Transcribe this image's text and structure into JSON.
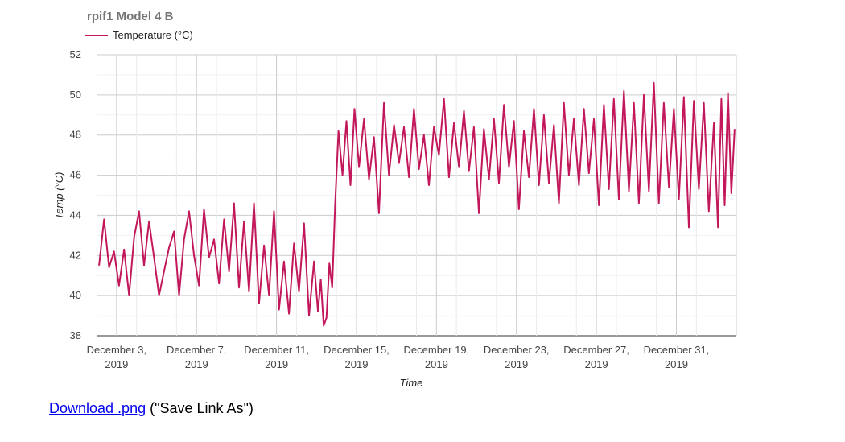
{
  "chart_data": {
    "type": "line",
    "title": "rpif1 Model 4 B",
    "xlabel": "Time",
    "ylabel": "Temp (°C)",
    "ylim": [
      38,
      52
    ],
    "yticks": [
      38,
      40,
      42,
      44,
      46,
      48,
      50,
      52
    ],
    "xlim": [
      "2019-12-02",
      "2020-01-03"
    ],
    "xticks": [
      {
        "date": "2019-12-03",
        "line1": "December 3,",
        "line2": "2019"
      },
      {
        "date": "2019-12-07",
        "line1": "December 7,",
        "line2": "2019"
      },
      {
        "date": "2019-12-11",
        "line1": "December 11,",
        "line2": "2019"
      },
      {
        "date": "2019-12-15",
        "line1": "December 15,",
        "line2": "2019"
      },
      {
        "date": "2019-12-19",
        "line1": "December 19,",
        "line2": "2019"
      },
      {
        "date": "2019-12-23",
        "line1": "December 23,",
        "line2": "2019"
      },
      {
        "date": "2019-12-27",
        "line1": "December 27,",
        "line2": "2019"
      },
      {
        "date": "2019-12-31",
        "line1": "December 31,",
        "line2": "2019"
      }
    ],
    "grid": true,
    "legend_position": "top-left",
    "series": [
      {
        "name": "Temperature (°C)",
        "color": "#c2185b",
        "points": [
          [
            "2019-12-02",
            41.5
          ],
          [
            "2019-12-02",
            43.8
          ],
          [
            "2019-12-02",
            41.4
          ],
          [
            "2019-12-02",
            42.2
          ],
          [
            "2019-12-03",
            40.5
          ],
          [
            "2019-12-03",
            42.3
          ],
          [
            "2019-12-03",
            40.0
          ],
          [
            "2019-12-03",
            42.9
          ],
          [
            "2019-12-04",
            44.2
          ],
          [
            "2019-12-04",
            41.5
          ],
          [
            "2019-12-04",
            43.7
          ],
          [
            "2019-12-04",
            41.9
          ],
          [
            "2019-12-05",
            40.0
          ],
          [
            "2019-12-05",
            41.2
          ],
          [
            "2019-12-05",
            42.4
          ],
          [
            "2019-12-05",
            43.2
          ],
          [
            "2019-12-06",
            40.0
          ],
          [
            "2019-12-06",
            42.8
          ],
          [
            "2019-12-06",
            44.2
          ],
          [
            "2019-12-06",
            42.0
          ],
          [
            "2019-12-07",
            40.5
          ],
          [
            "2019-12-07",
            44.3
          ],
          [
            "2019-12-07",
            41.9
          ],
          [
            "2019-12-07",
            42.8
          ],
          [
            "2019-12-08",
            40.6
          ],
          [
            "2019-12-08",
            43.8
          ],
          [
            "2019-12-08",
            41.2
          ],
          [
            "2019-12-08",
            44.6
          ],
          [
            "2019-12-09",
            40.4
          ],
          [
            "2019-12-09",
            43.7
          ],
          [
            "2019-12-09",
            40.2
          ],
          [
            "2019-12-09",
            44.6
          ],
          [
            "2019-12-10",
            39.6
          ],
          [
            "2019-12-10",
            42.5
          ],
          [
            "2019-12-10",
            40.0
          ],
          [
            "2019-12-10",
            44.2
          ],
          [
            "2019-12-11",
            39.3
          ],
          [
            "2019-12-11",
            41.7
          ],
          [
            "2019-12-11",
            39.1
          ],
          [
            "2019-12-11",
            42.6
          ],
          [
            "2019-12-12",
            40.2
          ],
          [
            "2019-12-12",
            43.6
          ],
          [
            "2019-12-12",
            39.0
          ],
          [
            "2019-12-12",
            41.7
          ],
          [
            "2019-12-13",
            39.2
          ],
          [
            "2019-12-13",
            40.8
          ],
          [
            "2019-12-13",
            38.5
          ],
          [
            "2019-12-13",
            38.9
          ],
          [
            "2019-12-13",
            41.6
          ],
          [
            "2019-12-13",
            40.4
          ],
          [
            "2019-12-13",
            44.5
          ],
          [
            "2019-12-14",
            48.2
          ],
          [
            "2019-12-14",
            46.0
          ],
          [
            "2019-12-14",
            48.7
          ],
          [
            "2019-12-14",
            45.5
          ],
          [
            "2019-12-14",
            49.3
          ],
          [
            "2019-12-15",
            46.4
          ],
          [
            "2019-12-15",
            48.8
          ],
          [
            "2019-12-15",
            45.8
          ],
          [
            "2019-12-15",
            47.9
          ],
          [
            "2019-12-16",
            44.1
          ],
          [
            "2019-12-16",
            49.6
          ],
          [
            "2019-12-16",
            46.0
          ],
          [
            "2019-12-16",
            48.5
          ],
          [
            "2019-12-17",
            46.6
          ],
          [
            "2019-12-17",
            48.4
          ],
          [
            "2019-12-17",
            45.9
          ],
          [
            "2019-12-17",
            49.3
          ],
          [
            "2019-12-18",
            46.3
          ],
          [
            "2019-12-18",
            48.0
          ],
          [
            "2019-12-18",
            45.5
          ],
          [
            "2019-12-18",
            48.4
          ],
          [
            "2019-12-19",
            47.0
          ],
          [
            "2019-12-19",
            49.8
          ],
          [
            "2019-12-19",
            45.9
          ],
          [
            "2019-12-19",
            48.6
          ],
          [
            "2019-12-20",
            46.4
          ],
          [
            "2019-12-20",
            49.2
          ],
          [
            "2019-12-20",
            46.2
          ],
          [
            "2019-12-20",
            48.4
          ],
          [
            "2019-12-21",
            44.1
          ],
          [
            "2019-12-21",
            48.3
          ],
          [
            "2019-12-21",
            45.8
          ],
          [
            "2019-12-21",
            48.8
          ],
          [
            "2019-12-22",
            45.6
          ],
          [
            "2019-12-22",
            49.5
          ],
          [
            "2019-12-22",
            46.4
          ],
          [
            "2019-12-22",
            48.7
          ],
          [
            "2019-12-23",
            44.3
          ],
          [
            "2019-12-23",
            48.2
          ],
          [
            "2019-12-23",
            45.9
          ],
          [
            "2019-12-23",
            49.3
          ],
          [
            "2019-12-24",
            45.5
          ],
          [
            "2019-12-24",
            49.0
          ],
          [
            "2019-12-24",
            45.6
          ],
          [
            "2019-12-24",
            48.5
          ],
          [
            "2019-12-25",
            44.6
          ],
          [
            "2019-12-25",
            49.6
          ],
          [
            "2019-12-25",
            46.0
          ],
          [
            "2019-12-25",
            48.8
          ],
          [
            "2019-12-26",
            45.5
          ],
          [
            "2019-12-26",
            49.3
          ],
          [
            "2019-12-26",
            46.1
          ],
          [
            "2019-12-26",
            48.8
          ],
          [
            "2019-12-27",
            44.5
          ],
          [
            "2019-12-27",
            49.5
          ],
          [
            "2019-12-27",
            45.3
          ],
          [
            "2019-12-27",
            49.8
          ],
          [
            "2019-12-28",
            44.8
          ],
          [
            "2019-12-28",
            50.2
          ],
          [
            "2019-12-28",
            45.2
          ],
          [
            "2019-12-28",
            49.6
          ],
          [
            "2019-12-29",
            44.6
          ],
          [
            "2019-12-29",
            50.0
          ],
          [
            "2019-12-29",
            45.2
          ],
          [
            "2019-12-29",
            50.6
          ],
          [
            "2019-12-30",
            44.6
          ],
          [
            "2019-12-30",
            49.6
          ],
          [
            "2019-12-30",
            45.4
          ],
          [
            "2019-12-30",
            49.3
          ],
          [
            "2019-12-31",
            44.8
          ],
          [
            "2019-12-31",
            49.9
          ],
          [
            "2019-12-31",
            43.4
          ],
          [
            "2019-12-31",
            49.7
          ],
          [
            "2020-01-01",
            45.3
          ],
          [
            "2020-01-01",
            49.6
          ],
          [
            "2020-01-01",
            44.2
          ],
          [
            "2020-01-01",
            48.6
          ],
          [
            "2020-01-02",
            43.4
          ],
          [
            "2020-01-02",
            49.8
          ],
          [
            "2020-01-02",
            44.5
          ],
          [
            "2020-01-02",
            50.1
          ],
          [
            "2020-01-02",
            45.1
          ],
          [
            "2020-01-02",
            48.3
          ]
        ]
      }
    ]
  },
  "footer": {
    "link_text": "Download .png",
    "suffix_text": " (\"Save Link As\")"
  }
}
